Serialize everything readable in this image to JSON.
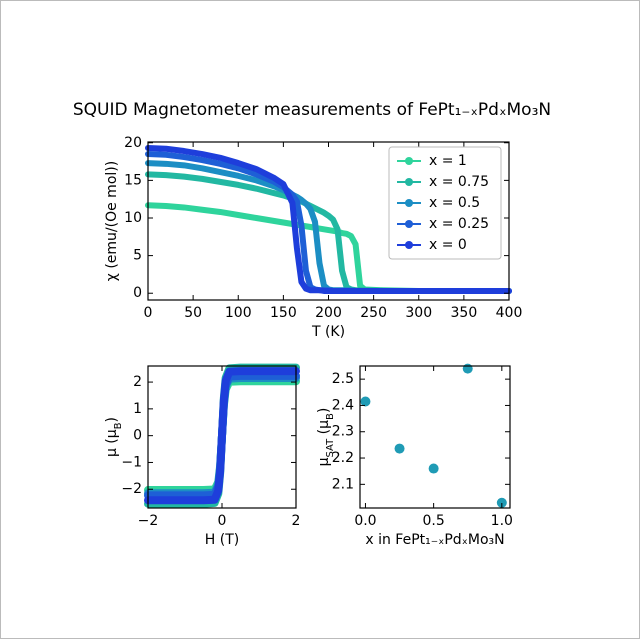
{
  "title": "SQUID Magnetometer measurements of FePt₁₋ₓPdₓMo₃N",
  "chart_data": [
    {
      "type": "line",
      "xlabel": "T (K)",
      "ylabel": "χ (emu/(Oe mol))",
      "x": [
        0,
        20,
        40,
        60,
        80,
        100,
        120,
        140,
        150,
        160,
        165,
        170,
        175,
        180,
        185,
        190,
        195,
        200,
        205,
        210,
        215,
        220,
        225,
        230,
        235,
        240,
        260,
        300,
        350,
        400
      ],
      "series": [
        {
          "name": "x = 1",
          "color": "#2fd49c",
          "values": [
            11.7,
            11.6,
            11.4,
            11.1,
            10.8,
            10.4,
            10.0,
            9.6,
            9.4,
            9.2,
            9.1,
            9.0,
            8.9,
            8.8,
            8.7,
            8.6,
            8.5,
            8.4,
            8.3,
            8.2,
            8.0,
            7.9,
            7.6,
            6.5,
            1.0,
            0.5,
            0.4,
            0.3,
            0.3,
            0.3
          ]
        },
        {
          "name": "x = 0.75",
          "color": "#22b8a2",
          "values": [
            15.8,
            15.7,
            15.5,
            15.2,
            14.8,
            14.4,
            13.9,
            13.3,
            13.0,
            12.6,
            12.4,
            12.2,
            11.9,
            11.6,
            11.3,
            11.0,
            10.7,
            10.3,
            9.8,
            8.5,
            3.0,
            0.8,
            0.5,
            0.4,
            0.4,
            0.4,
            0.3,
            0.3,
            0.3,
            0.3
          ]
        },
        {
          "name": "x = 0.5",
          "color": "#1c8ec4",
          "values": [
            17.3,
            17.2,
            17.0,
            16.6,
            16.1,
            15.6,
            15.0,
            14.2,
            13.7,
            13.1,
            12.8,
            12.4,
            11.9,
            11.2,
            9.5,
            4.0,
            1.0,
            0.5,
            0.4,
            0.4,
            0.4,
            0.4,
            0.4,
            0.3,
            0.3,
            0.3,
            0.3,
            0.3,
            0.3,
            0.3
          ]
        },
        {
          "name": "x = 0.25",
          "color": "#1e5fd6",
          "values": [
            18.5,
            18.4,
            18.1,
            17.7,
            17.2,
            16.6,
            15.8,
            14.8,
            14.1,
            13.1,
            12.2,
            9.0,
            3.0,
            0.8,
            0.5,
            0.4,
            0.4,
            0.4,
            0.3,
            0.3,
            0.3,
            0.3,
            0.3,
            0.3,
            0.3,
            0.3,
            0.3,
            0.3,
            0.3,
            0.3
          ]
        },
        {
          "name": "x = 0",
          "color": "#1e3edb",
          "values": [
            19.3,
            19.2,
            18.9,
            18.5,
            18.0,
            17.3,
            16.5,
            15.3,
            14.5,
            12.0,
            6.0,
            1.5,
            0.6,
            0.4,
            0.4,
            0.4,
            0.3,
            0.3,
            0.3,
            0.3,
            0.3,
            0.3,
            0.3,
            0.3,
            0.3,
            0.3,
            0.3,
            0.3,
            0.3,
            0.3
          ]
        }
      ],
      "xlim": [
        0,
        400
      ],
      "xticks": [
        0,
        50,
        100,
        150,
        200,
        250,
        300,
        350,
        400
      ],
      "ylim": [
        -0.9,
        20.1
      ],
      "yticks": [
        0,
        5,
        10,
        15,
        20
      ],
      "legend": "upper right"
    },
    {
      "type": "line",
      "xlabel": "H (T)",
      "ylabel": [
        "μ (μ",
        "B",
        ")"
      ],
      "x": [
        -2,
        -1.5,
        -1,
        -0.5,
        -0.2,
        -0.1,
        -0.05,
        0,
        0.05,
        0.1,
        0.2,
        0.5,
        1,
        1.5,
        2
      ],
      "series": [
        {
          "color": "#2fd49c",
          "values": [
            -2.03,
            -2.03,
            -2.03,
            -2.03,
            -2.01,
            -1.73,
            -1.12,
            0,
            1.12,
            1.73,
            2.01,
            2.03,
            2.03,
            2.03,
            2.03
          ]
        },
        {
          "color": "#22b8a2",
          "values": [
            -2.54,
            -2.54,
            -2.54,
            -2.54,
            -2.51,
            -2.16,
            -1.4,
            0,
            1.4,
            2.16,
            2.51,
            2.54,
            2.54,
            2.54,
            2.54
          ]
        },
        {
          "color": "#1c8ec4",
          "values": [
            -2.15,
            -2.15,
            -2.15,
            -2.15,
            -2.13,
            -1.83,
            -1.18,
            0,
            1.18,
            1.83,
            2.13,
            2.15,
            2.15,
            2.15,
            2.15
          ]
        },
        {
          "color": "#1e5fd6",
          "values": [
            -2.23,
            -2.23,
            -2.23,
            -2.23,
            -2.21,
            -1.9,
            -1.23,
            0,
            1.23,
            1.9,
            2.21,
            2.23,
            2.23,
            2.23,
            2.23
          ]
        },
        {
          "color": "#1e3edb",
          "values": [
            -2.41,
            -2.41,
            -2.41,
            -2.41,
            -2.39,
            -2.05,
            -1.33,
            0,
            1.33,
            2.05,
            2.39,
            2.41,
            2.41,
            2.41,
            2.41
          ]
        }
      ],
      "xlim": [
        -2,
        2
      ],
      "xticks": [
        {
          "value": -2,
          "label": "−2"
        },
        0,
        2
      ],
      "ylim": [
        -2.7,
        2.6
      ],
      "yticks": [
        {
          "value": -2,
          "label": "−2"
        },
        {
          "value": -1,
          "label": "−1"
        },
        0,
        1,
        2
      ]
    },
    {
      "type": "scatter",
      "xlabel": "x in FePt₁₋ₓPdₓMo₃N",
      "ylabel": [
        "μ",
        "SAT",
        " (μ",
        "B",
        ")"
      ],
      "color": "#1f9bb5",
      "x": [
        0,
        0.25,
        0.5,
        0.75,
        1.0
      ],
      "values": [
        2.415,
        2.236,
        2.16,
        2.54,
        2.03
      ],
      "xlim": [
        -0.04,
        1.06
      ],
      "xticks": [
        {
          "value": 0,
          "label": "0.0"
        },
        0.5,
        {
          "value": 1,
          "label": "1.0"
        }
      ],
      "ylim": [
        2.01,
        2.55
      ],
      "yticks": [
        2.1,
        2.2,
        2.3,
        2.4,
        2.5
      ]
    }
  ]
}
